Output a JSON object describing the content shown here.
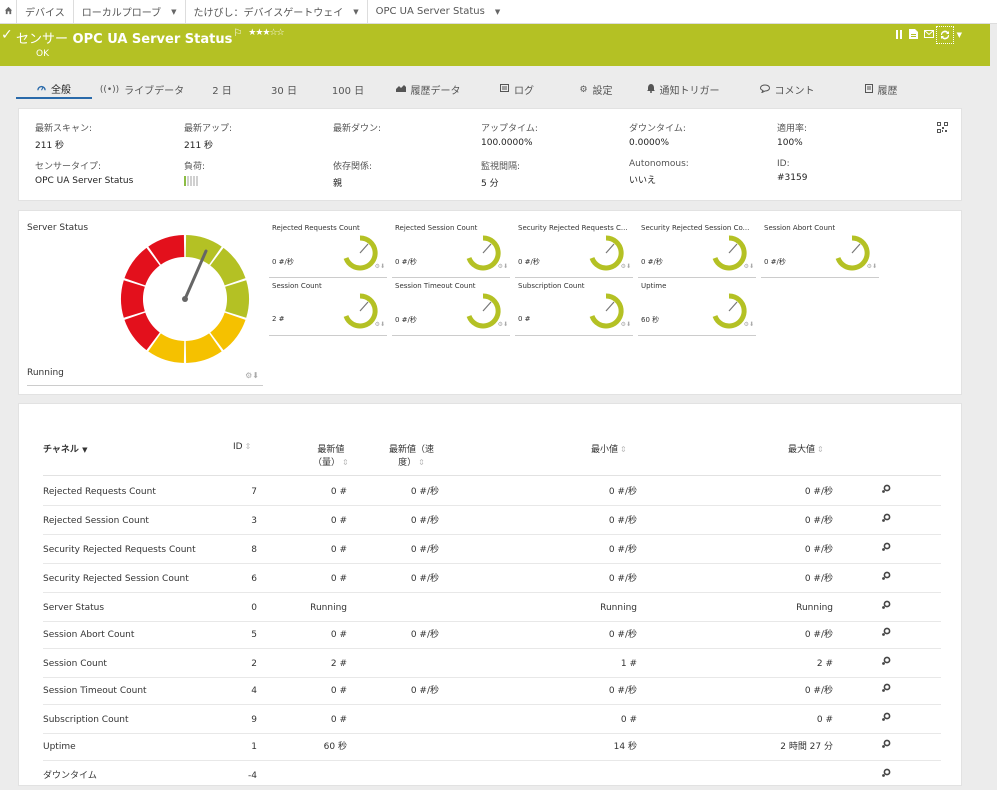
{
  "breadcrumb": {
    "home_icon": "home-icon",
    "items": [
      {
        "label": "デバイス",
        "caret": false
      },
      {
        "label": "ローカルプローブ",
        "caret": true
      },
      {
        "label": "たけびし：デバイスゲートウェイ",
        "caret": true
      },
      {
        "label": "OPC UA Server Status",
        "caret": true
      }
    ]
  },
  "header": {
    "prefix": "センサー",
    "title": "OPC UA Server Status",
    "stars": "★★★☆☆",
    "status": "OK",
    "flag_icon": "flag-icon",
    "toolbar_icons": [
      "pause-icon",
      "report-icon",
      "email-icon"
    ],
    "refresh_icon": "refresh-icon",
    "colors": {
      "header_bg": "#b4c124",
      "gauge_green": "#b4c124",
      "gauge_yellow": "#f5c100",
      "gauge_red": "#e3101c",
      "tab_underline": "#2a6aaa"
    }
  },
  "tabs": [
    {
      "label": "全般",
      "icon": "overview-icon",
      "active": true
    },
    {
      "label": "ライブデータ",
      "icon": "live-data-icon",
      "active": false
    },
    {
      "label": "2 日",
      "icon": "",
      "active": false
    },
    {
      "label": "30 日",
      "icon": "",
      "active": false
    },
    {
      "label": "100 日",
      "icon": "",
      "active": false
    },
    {
      "label": "履歴データ",
      "icon": "historic-data-icon",
      "active": false
    },
    {
      "label": "ログ",
      "icon": "log-icon",
      "active": false
    },
    {
      "label": "設定",
      "icon": "settings-icon",
      "active": false
    },
    {
      "label": "通知トリガー",
      "icon": "bell-icon",
      "active": false
    },
    {
      "label": "コメント",
      "icon": "comment-icon",
      "active": false
    },
    {
      "label": "履歴",
      "icon": "history-icon",
      "active": false
    }
  ],
  "info": {
    "last_scan_label": "最新スキャン:",
    "last_scan": "211 秒",
    "last_up_label": "最新アップ:",
    "last_up": "211 秒",
    "last_down_label": "最新ダウン:",
    "last_down": "",
    "uptime_label": "アップタイム:",
    "uptime": "100.0000%",
    "downtime_label": "ダウンタイム:",
    "downtime": "0.0000%",
    "coverage_label": "適用率:",
    "coverage": "100%",
    "sensor_type_label": "センサータイプ:",
    "sensor_type": "OPC UA Server Status",
    "load_label": "負荷:",
    "load_level": 1,
    "load_max": 5,
    "dependency_label": "依存関係:",
    "dependency": "親",
    "interval_label": "監視間隔:",
    "interval": "5 分",
    "autonomous_label": "Autonomous:",
    "autonomous": "いいえ",
    "id_label": "ID:",
    "id": "#3159",
    "qr_icon": "qr-code-icon"
  },
  "gauges": {
    "main": {
      "title": "Server Status",
      "value": "Running"
    },
    "minis": [
      {
        "title": "Rejected Requests Count",
        "value": "0 #/秒"
      },
      {
        "title": "Rejected Session Count",
        "value": "0 #/秒"
      },
      {
        "title": "Security Rejected Requests C...",
        "value": "0 #/秒"
      },
      {
        "title": "Security Rejected Session Co...",
        "value": "0 #/秒"
      },
      {
        "title": "Session Abort Count",
        "value": "0 #/秒"
      },
      {
        "title": "Session Count",
        "value": "2 #"
      },
      {
        "title": "Session Timeout Count",
        "value": "0 #/秒"
      },
      {
        "title": "Subscription Count",
        "value": "0 #"
      },
      {
        "title": "Uptime",
        "value": "60 秒"
      }
    ]
  },
  "table": {
    "headers": {
      "channel": "チャネル",
      "id": "ID",
      "last_value_line1": "最新値",
      "last_value_line2": "（量）",
      "last_rate_line1": "最新値（速",
      "last_rate_line2": "度）",
      "min": "最小値",
      "max": "最大値"
    },
    "rows": [
      {
        "channel": "Rejected Requests Count",
        "id": "7",
        "last": "0 #",
        "rate": "0 #/秒",
        "min": "0 #/秒",
        "max": "0 #/秒"
      },
      {
        "channel": "Rejected Session Count",
        "id": "3",
        "last": "0 #",
        "rate": "0 #/秒",
        "min": "0 #/秒",
        "max": "0 #/秒"
      },
      {
        "channel": "Security Rejected Requests Count",
        "id": "8",
        "last": "0 #",
        "rate": "0 #/秒",
        "min": "0 #/秒",
        "max": "0 #/秒"
      },
      {
        "channel": "Security Rejected Session Count",
        "id": "6",
        "last": "0 #",
        "rate": "0 #/秒",
        "min": "0 #/秒",
        "max": "0 #/秒"
      },
      {
        "channel": "Server Status",
        "id": "0",
        "last": "Running",
        "rate": "",
        "min": "Running",
        "max": "Running"
      },
      {
        "channel": "Session Abort Count",
        "id": "5",
        "last": "0 #",
        "rate": "0 #/秒",
        "min": "0 #/秒",
        "max": "0 #/秒"
      },
      {
        "channel": "Session Count",
        "id": "2",
        "last": "2 #",
        "rate": "",
        "min": "1 #",
        "max": "2 #"
      },
      {
        "channel": "Session Timeout Count",
        "id": "4",
        "last": "0 #",
        "rate": "0 #/秒",
        "min": "0 #/秒",
        "max": "0 #/秒"
      },
      {
        "channel": "Subscription Count",
        "id": "9",
        "last": "0 #",
        "rate": "",
        "min": "0 #",
        "max": "0 #"
      },
      {
        "channel": "Uptime",
        "id": "1",
        "last": "60 秒",
        "rate": "",
        "min": "14 秒",
        "max": "2 時間 27 分"
      },
      {
        "channel": "ダウンタイム",
        "id": "-4",
        "last": "",
        "rate": "",
        "min": "",
        "max": ""
      }
    ]
  }
}
